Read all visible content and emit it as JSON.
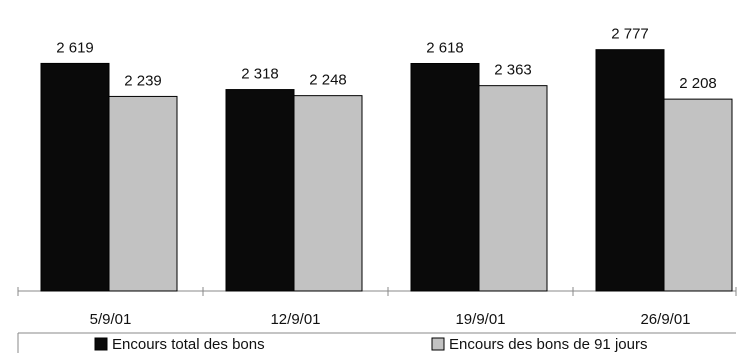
{
  "chart_data": {
    "type": "bar",
    "title": "",
    "xlabel": "",
    "ylabel": "",
    "categories": [
      "5/9/01",
      "12/9/01",
      "19/9/01",
      "26/9/01"
    ],
    "series": [
      {
        "name": "Encours total des bons",
        "values": [
          2619,
          2318,
          2618,
          2777
        ],
        "labels": [
          "2 619",
          "2 318",
          "2 618",
          "2 777"
        ],
        "color": "#0a0a0a"
      },
      {
        "name": "Encours des bons de 91 jours",
        "values": [
          2239,
          2248,
          2363,
          2208
        ],
        "labels": [
          "2 239",
          "2 248",
          "2 363",
          "2 208"
        ],
        "color": "#c2c2c2"
      }
    ],
    "ylim": [
      0,
      2900
    ],
    "grid": false,
    "legend": "bottom"
  }
}
